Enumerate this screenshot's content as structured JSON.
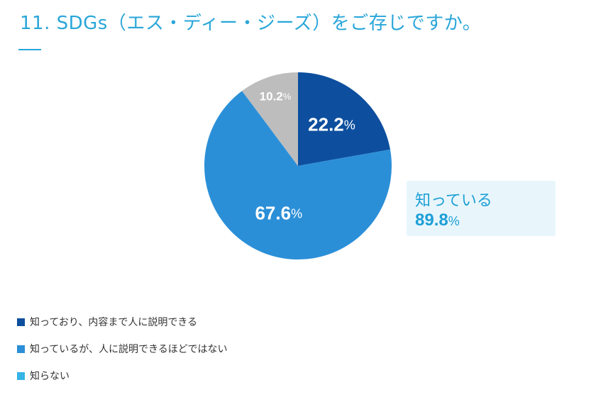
{
  "title": "11. SDGs（エス・ディー・ジーズ）をご存じですか。",
  "colors": {
    "accent": "#29a6d9",
    "slice_text": "#ffffff",
    "callout_bg": "#e8f6fc"
  },
  "chart_data": {
    "type": "pie",
    "start_angle_deg": 0,
    "direction": "clockwise",
    "slices": [
      {
        "label": "知っており、内容まで人に説明できる",
        "value": 22.2,
        "display": "22.2",
        "unit": "%",
        "color": "#0d4f9e"
      },
      {
        "label": "知っているが、人に説明できるほどではない",
        "value": 67.6,
        "display": "67.6",
        "unit": "%",
        "color": "#2b8fd8"
      },
      {
        "label": "",
        "value": 10.2,
        "display": "10.2",
        "unit": "%",
        "color": "#bdbdbd"
      }
    ],
    "legend": [
      {
        "label": "知っており、内容まで人に説明できる",
        "color": "#0d4f9e"
      },
      {
        "label": "知っているが、人に説明できるほどではない",
        "color": "#2b8fd8"
      },
      {
        "label": "知らない",
        "color": "#35b4e6"
      }
    ],
    "legend_position": "bottom-left",
    "callout": {
      "label": "知っている",
      "value": "89.8",
      "unit": "%"
    }
  }
}
